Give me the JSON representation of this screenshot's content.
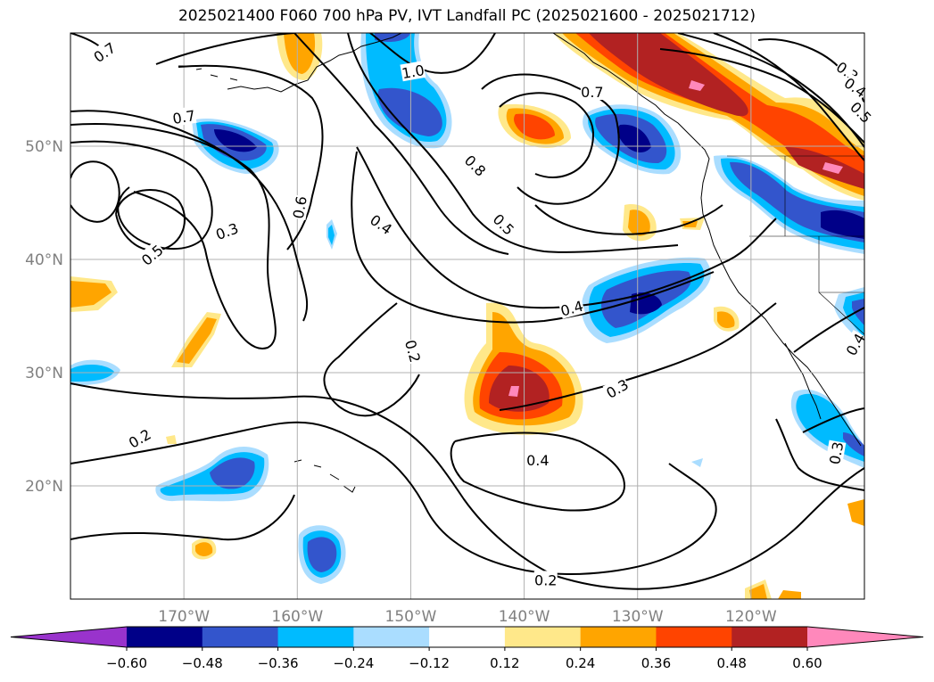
{
  "title": "2025021400 F060 700 hPa PV, IVT Landfall PC (2025021600 - 2025021712)",
  "map": {
    "lon_range": [
      -180,
      -110
    ],
    "lat_range": [
      10,
      60
    ],
    "grid": true,
    "lon_labels": [
      {
        "lon": -170,
        "text": "170°W"
      },
      {
        "lon": -160,
        "text": "160°W"
      },
      {
        "lon": -150,
        "text": "150°W"
      },
      {
        "lon": -140,
        "text": "140°W"
      },
      {
        "lon": -130,
        "text": "130°W"
      },
      {
        "lon": -120,
        "text": "120°W"
      }
    ],
    "lat_labels": [
      {
        "lat": 50,
        "text": "50°N"
      },
      {
        "lat": 40,
        "text": "40°N"
      },
      {
        "lat": 30,
        "text": "30°N"
      },
      {
        "lat": 20,
        "text": "20°N"
      }
    ]
  },
  "colorbar": {
    "colors": [
      "#9933cc",
      "#000088",
      "#3355cc",
      "#00bbff",
      "#aaddff",
      "#ffffff",
      "#ffe88a",
      "#ffa500",
      "#ff4400",
      "#b22222",
      "#ff88bb"
    ],
    "ticks": [
      "−0.60",
      "−0.48",
      "−0.36",
      "−0.24",
      "−0.12",
      "0.12",
      "0.24",
      "0.36",
      "0.48",
      "0.60"
    ],
    "extend": "both"
  },
  "contour_labels": [
    {
      "text": "0.7",
      "lon": -177.0,
      "lat": 58.3,
      "rot": -35
    },
    {
      "text": "1.0",
      "lon": -149.8,
      "lat": 56.6,
      "rot": -10
    },
    {
      "text": "0.7",
      "lon": -170.0,
      "lat": 52.6,
      "rot": -10
    },
    {
      "text": "0.7",
      "lon": -134.0,
      "lat": 54.8,
      "rot": 0
    },
    {
      "text": "0.3",
      "lon": -111.5,
      "lat": 56.6,
      "rot": 35
    },
    {
      "text": "0.4",
      "lon": -110.8,
      "lat": 55.2,
      "rot": 35
    },
    {
      "text": "0.5",
      "lon": -110.3,
      "lat": 53.0,
      "rot": 45
    },
    {
      "text": "0.8",
      "lon": -144.3,
      "lat": 48.3,
      "rot": 45
    },
    {
      "text": "0.6",
      "lon": -159.8,
      "lat": 44.6,
      "rot": -80
    },
    {
      "text": "0.4",
      "lon": -152.6,
      "lat": 43.1,
      "rot": 35
    },
    {
      "text": "0.5",
      "lon": -141.8,
      "lat": 43.1,
      "rot": 45
    },
    {
      "text": "0.3",
      "lon": -166.2,
      "lat": 42.5,
      "rot": -20
    },
    {
      "text": "0.5",
      "lon": -172.8,
      "lat": 40.4,
      "rot": -40
    },
    {
      "text": "0.4",
      "lon": -135.8,
      "lat": 35.7,
      "rot": -15
    },
    {
      "text": "0.2",
      "lon": -149.8,
      "lat": 31.9,
      "rot": 75
    },
    {
      "text": "0.4",
      "lon": -110.8,
      "lat": 32.5,
      "rot": -60
    },
    {
      "text": "0.3",
      "lon": -131.8,
      "lat": 28.6,
      "rot": -30
    },
    {
      "text": "0.2",
      "lon": -173.9,
      "lat": 24.2,
      "rot": -30
    },
    {
      "text": "0.3",
      "lon": -112.5,
      "lat": 22.9,
      "rot": -80
    },
    {
      "text": "0.4",
      "lon": -138.8,
      "lat": 22.3,
      "rot": 0
    },
    {
      "text": "0.2",
      "lon": -138.1,
      "lat": 11.7,
      "rot": 0
    }
  ]
}
